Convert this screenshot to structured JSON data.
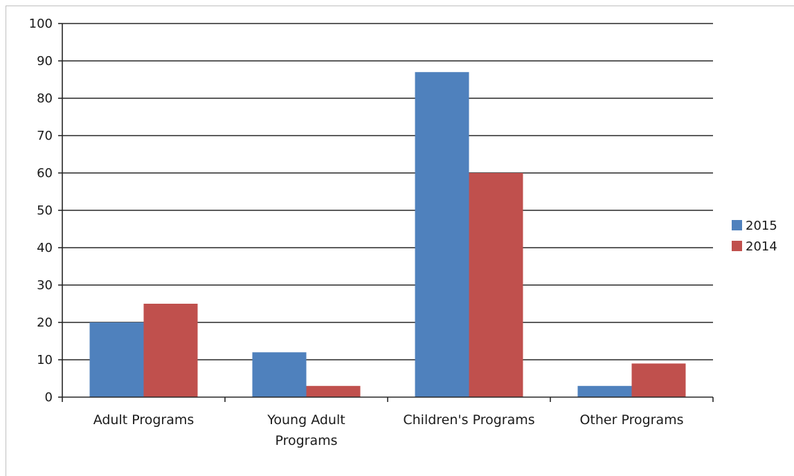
{
  "chart_data": {
    "type": "bar",
    "categories": [
      [
        "Adult Programs"
      ],
      [
        "Young Adult",
        "Programs"
      ],
      [
        "Children's Programs"
      ],
      [
        "Other Programs"
      ]
    ],
    "series": [
      {
        "name": "2015",
        "values": [
          20,
          12,
          87,
          3
        ],
        "color": "#4f81bd"
      },
      {
        "name": "2014",
        "values": [
          25,
          3,
          60,
          9
        ],
        "color": "#c0504d"
      }
    ],
    "yticks": [
      0,
      10,
      20,
      30,
      40,
      50,
      60,
      70,
      80,
      90,
      100
    ],
    "ylim": [
      0,
      100
    ],
    "grid": true,
    "legend": "right",
    "title": "",
    "xlabel": "",
    "ylabel": ""
  }
}
